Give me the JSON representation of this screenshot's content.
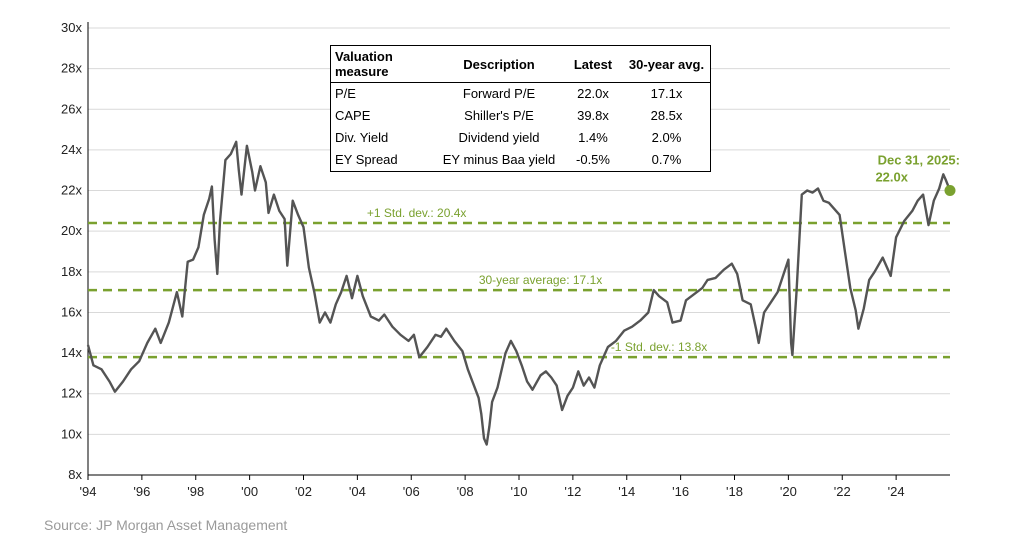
{
  "chart_data": {
    "type": "line",
    "title": "",
    "xlabel": "",
    "ylabel": "",
    "x_range": [
      1994,
      2026
    ],
    "ylim": [
      8,
      30
    ],
    "y_ticks": [
      "8x",
      "10x",
      "12x",
      "14x",
      "16x",
      "18x",
      "20x",
      "22x",
      "24x",
      "26x",
      "28x",
      "30x"
    ],
    "x_ticks": [
      {
        "year": 1994,
        "label": "'94"
      },
      {
        "year": 1996,
        "label": "'96"
      },
      {
        "year": 1998,
        "label": "'98"
      },
      {
        "year": 2000,
        "label": "'00"
      },
      {
        "year": 2002,
        "label": "'02"
      },
      {
        "year": 2004,
        "label": "'04"
      },
      {
        "year": 2006,
        "label": "'06"
      },
      {
        "year": 2008,
        "label": "'08"
      },
      {
        "year": 2010,
        "label": "'10"
      },
      {
        "year": 2012,
        "label": "'12"
      },
      {
        "year": 2014,
        "label": "'14"
      },
      {
        "year": 2016,
        "label": "'16"
      },
      {
        "year": 2018,
        "label": "'18"
      },
      {
        "year": 2020,
        "label": "'20"
      },
      {
        "year": 2022,
        "label": "'22"
      },
      {
        "year": 2024,
        "label": "'24"
      }
    ],
    "series": [
      {
        "name": "Forward P/E",
        "color": "#545454",
        "points": [
          [
            1994.0,
            14.4
          ],
          [
            1994.2,
            13.4
          ],
          [
            1994.5,
            13.2
          ],
          [
            1994.8,
            12.6
          ],
          [
            1995.0,
            12.1
          ],
          [
            1995.3,
            12.6
          ],
          [
            1995.6,
            13.2
          ],
          [
            1995.9,
            13.6
          ],
          [
            1996.2,
            14.5
          ],
          [
            1996.5,
            15.2
          ],
          [
            1996.7,
            14.5
          ],
          [
            1997.0,
            15.5
          ],
          [
            1997.3,
            17.0
          ],
          [
            1997.5,
            15.8
          ],
          [
            1997.7,
            18.5
          ],
          [
            1997.9,
            18.6
          ],
          [
            1998.1,
            19.2
          ],
          [
            1998.3,
            20.8
          ],
          [
            1998.5,
            21.6
          ],
          [
            1998.6,
            22.2
          ],
          [
            1998.7,
            19.6
          ],
          [
            1998.8,
            17.9
          ],
          [
            1998.9,
            20.5
          ],
          [
            1999.1,
            23.5
          ],
          [
            1999.3,
            23.8
          ],
          [
            1999.5,
            24.4
          ],
          [
            1999.6,
            23.0
          ],
          [
            1999.7,
            21.8
          ],
          [
            1999.9,
            24.2
          ],
          [
            2000.1,
            22.9
          ],
          [
            2000.2,
            22.0
          ],
          [
            2000.4,
            23.2
          ],
          [
            2000.6,
            22.4
          ],
          [
            2000.7,
            20.9
          ],
          [
            2000.9,
            21.8
          ],
          [
            2001.1,
            21.0
          ],
          [
            2001.3,
            20.6
          ],
          [
            2001.4,
            18.3
          ],
          [
            2001.6,
            21.5
          ],
          [
            2001.8,
            20.8
          ],
          [
            2002.0,
            20.2
          ],
          [
            2002.2,
            18.2
          ],
          [
            2002.4,
            17.0
          ],
          [
            2002.6,
            15.5
          ],
          [
            2002.8,
            16.0
          ],
          [
            2003.0,
            15.5
          ],
          [
            2003.2,
            16.4
          ],
          [
            2003.4,
            17.0
          ],
          [
            2003.6,
            17.8
          ],
          [
            2003.8,
            16.7
          ],
          [
            2004.0,
            17.8
          ],
          [
            2004.2,
            16.8
          ],
          [
            2004.5,
            15.8
          ],
          [
            2004.8,
            15.6
          ],
          [
            2005.0,
            15.9
          ],
          [
            2005.3,
            15.3
          ],
          [
            2005.6,
            14.9
          ],
          [
            2005.9,
            14.6
          ],
          [
            2006.1,
            14.9
          ],
          [
            2006.3,
            13.8
          ],
          [
            2006.6,
            14.3
          ],
          [
            2006.9,
            14.9
          ],
          [
            2007.1,
            14.8
          ],
          [
            2007.3,
            15.2
          ],
          [
            2007.6,
            14.6
          ],
          [
            2007.9,
            14.1
          ],
          [
            2008.1,
            13.2
          ],
          [
            2008.3,
            12.5
          ],
          [
            2008.5,
            11.8
          ],
          [
            2008.6,
            11.0
          ],
          [
            2008.7,
            9.8
          ],
          [
            2008.8,
            9.5
          ],
          [
            2008.9,
            10.4
          ],
          [
            2009.0,
            11.6
          ],
          [
            2009.2,
            12.3
          ],
          [
            2009.5,
            14.0
          ],
          [
            2009.7,
            14.6
          ],
          [
            2009.9,
            14.1
          ],
          [
            2010.1,
            13.4
          ],
          [
            2010.3,
            12.6
          ],
          [
            2010.5,
            12.2
          ],
          [
            2010.8,
            12.9
          ],
          [
            2011.0,
            13.1
          ],
          [
            2011.2,
            12.8
          ],
          [
            2011.4,
            12.4
          ],
          [
            2011.6,
            11.2
          ],
          [
            2011.8,
            11.9
          ],
          [
            2012.0,
            12.3
          ],
          [
            2012.2,
            13.1
          ],
          [
            2012.4,
            12.4
          ],
          [
            2012.6,
            12.8
          ],
          [
            2012.8,
            12.3
          ],
          [
            2013.0,
            13.4
          ],
          [
            2013.3,
            14.3
          ],
          [
            2013.6,
            14.6
          ],
          [
            2013.9,
            15.1
          ],
          [
            2014.2,
            15.3
          ],
          [
            2014.5,
            15.6
          ],
          [
            2014.8,
            16.0
          ],
          [
            2015.0,
            17.1
          ],
          [
            2015.2,
            16.8
          ],
          [
            2015.5,
            16.5
          ],
          [
            2015.7,
            15.5
          ],
          [
            2016.0,
            15.6
          ],
          [
            2016.2,
            16.6
          ],
          [
            2016.5,
            16.9
          ],
          [
            2016.8,
            17.2
          ],
          [
            2017.0,
            17.6
          ],
          [
            2017.3,
            17.7
          ],
          [
            2017.6,
            18.1
          ],
          [
            2017.9,
            18.4
          ],
          [
            2018.1,
            17.9
          ],
          [
            2018.3,
            16.6
          ],
          [
            2018.6,
            16.4
          ],
          [
            2018.8,
            15.2
          ],
          [
            2018.9,
            14.5
          ],
          [
            2019.1,
            16.0
          ],
          [
            2019.4,
            16.6
          ],
          [
            2019.6,
            17.0
          ],
          [
            2019.9,
            18.2
          ],
          [
            2020.0,
            18.6
          ],
          [
            2020.1,
            14.5
          ],
          [
            2020.15,
            13.9
          ],
          [
            2020.3,
            17.0
          ],
          [
            2020.5,
            21.8
          ],
          [
            2020.7,
            22.0
          ],
          [
            2020.9,
            21.9
          ],
          [
            2021.1,
            22.1
          ],
          [
            2021.3,
            21.5
          ],
          [
            2021.5,
            21.4
          ],
          [
            2021.7,
            21.1
          ],
          [
            2021.9,
            20.8
          ],
          [
            2022.1,
            19.0
          ],
          [
            2022.3,
            17.2
          ],
          [
            2022.5,
            16.1
          ],
          [
            2022.6,
            15.2
          ],
          [
            2022.8,
            16.2
          ],
          [
            2023.0,
            17.6
          ],
          [
            2023.2,
            18.0
          ],
          [
            2023.5,
            18.7
          ],
          [
            2023.8,
            17.8
          ],
          [
            2024.0,
            19.7
          ],
          [
            2024.3,
            20.5
          ],
          [
            2024.6,
            21.0
          ],
          [
            2024.8,
            21.5
          ],
          [
            2025.0,
            21.8
          ],
          [
            2025.2,
            20.3
          ],
          [
            2025.4,
            21.5
          ],
          [
            2025.6,
            22.1
          ],
          [
            2025.75,
            22.8
          ],
          [
            2025.85,
            22.5
          ],
          [
            2026.0,
            22.0
          ]
        ]
      }
    ],
    "reference_lines": [
      {
        "name": "plus-one-std",
        "value": 20.4,
        "label": "+1 Std. dev.: 20.4x",
        "label_x": 2006.2,
        "color": "#7aa12f"
      },
      {
        "name": "thirty-year-average",
        "value": 17.1,
        "label": "30-year average: 17.1x",
        "label_x": 2010.8,
        "color": "#7aa12f"
      },
      {
        "name": "minus-one-std",
        "value": 13.8,
        "label": "-1 Std. dev.: 13.8x",
        "label_x": 2015.2,
        "color": "#7aa12f"
      }
    ],
    "annotation": {
      "line1": "Dec 31, 2025:",
      "line2": "22.0x",
      "point": [
        2026.0,
        22.0
      ],
      "color": "#7aa12f"
    }
  },
  "table": {
    "headers": [
      "Valuation measure",
      "Description",
      "Latest",
      "30-year avg."
    ],
    "rows": [
      [
        "P/E",
        "Forward P/E",
        "22.0x",
        "17.1x"
      ],
      [
        "CAPE",
        "Shiller's P/E",
        "39.8x",
        "28.5x"
      ],
      [
        "Div. Yield",
        "Dividend yield",
        "1.4%",
        "2.0%"
      ],
      [
        "EY Spread",
        "EY minus Baa yield",
        "-0.5%",
        "0.7%"
      ]
    ]
  },
  "source": "Source: JP Morgan Asset Management",
  "colors": {
    "line": "#545454",
    "accent": "#7aa12f",
    "grid": "#d9d9d9",
    "axis": "#000000"
  }
}
